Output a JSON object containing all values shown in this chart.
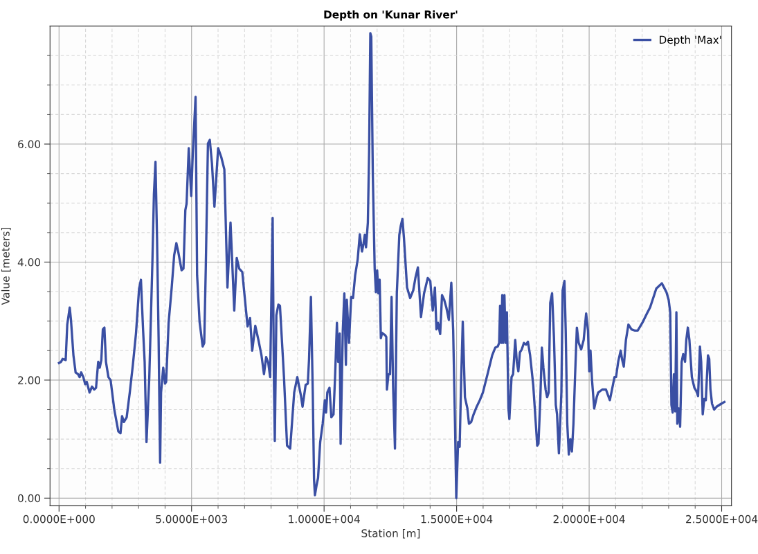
{
  "chart_data": {
    "type": "line",
    "title": "Depth on 'Kunar River'",
    "xlabel": "Station [m]",
    "ylabel": "Value [meters]",
    "xlim": [
      -340,
      25370
    ],
    "ylim": [
      -0.13,
      8.0
    ],
    "xticks": [
      {
        "value": 0,
        "label": "0.0000E+000"
      },
      {
        "value": 1000,
        "label": null
      },
      {
        "value": 2000,
        "label": null
      },
      {
        "value": 3000,
        "label": null
      },
      {
        "value": 4000,
        "label": null
      },
      {
        "value": 5000,
        "label": "5.0000E+003"
      },
      {
        "value": 6000,
        "label": null
      },
      {
        "value": 7000,
        "label": null
      },
      {
        "value": 8000,
        "label": null
      },
      {
        "value": 9000,
        "label": null
      },
      {
        "value": 10000,
        "label": "1.0000E+004"
      },
      {
        "value": 11000,
        "label": null
      },
      {
        "value": 12000,
        "label": null
      },
      {
        "value": 13000,
        "label": null
      },
      {
        "value": 14000,
        "label": null
      },
      {
        "value": 15000,
        "label": "1.5000E+004"
      },
      {
        "value": 16000,
        "label": null
      },
      {
        "value": 17000,
        "label": null
      },
      {
        "value": 18000,
        "label": null
      },
      {
        "value": 19000,
        "label": null
      },
      {
        "value": 20000,
        "label": "2.0000E+004"
      },
      {
        "value": 21000,
        "label": null
      },
      {
        "value": 22000,
        "label": null
      },
      {
        "value": 23000,
        "label": null
      },
      {
        "value": 24000,
        "label": null
      },
      {
        "value": 25000,
        "label": "2.5000E+004"
      }
    ],
    "yticks": [
      {
        "value": 0,
        "label": "0.00"
      },
      {
        "value": 0.5,
        "label": null
      },
      {
        "value": 1,
        "label": null
      },
      {
        "value": 1.5,
        "label": null
      },
      {
        "value": 2,
        "label": "2.00"
      },
      {
        "value": 2.5,
        "label": null
      },
      {
        "value": 3,
        "label": null
      },
      {
        "value": 3.5,
        "label": null
      },
      {
        "value": 4,
        "label": "4.00"
      },
      {
        "value": 4.5,
        "label": null
      },
      {
        "value": 5,
        "label": null
      },
      {
        "value": 5.5,
        "label": null
      },
      {
        "value": 6,
        "label": "6.00"
      },
      {
        "value": 6.5,
        "label": null
      },
      {
        "value": 7,
        "label": null
      },
      {
        "value": 7.5,
        "label": null
      }
    ],
    "grid": true,
    "legend": "top right",
    "marker": "none",
    "line_style": "solid",
    "series": [
      {
        "name": "Depth 'Max'",
        "color": "#3a4fa3",
        "x": [
          0,
          76,
          135,
          251,
          310,
          403,
          450,
          543,
          625,
          719,
          777,
          835,
          917,
          987,
          1046,
          1151,
          1244,
          1326,
          1396,
          1478,
          1536,
          1595,
          1653,
          1711,
          1770,
          1863,
          1945,
          2085,
          2237,
          2319,
          2377,
          2447,
          2552,
          2669,
          2786,
          2903,
          3020,
          3090,
          3172,
          3230,
          3300,
          3405,
          3522,
          3580,
          3639,
          3697,
          3756,
          3779,
          3814,
          3849,
          3931,
          4001,
          4041,
          4134,
          4251,
          4345,
          4426,
          4508,
          4625,
          4695,
          4765,
          4812,
          4894,
          4987,
          5045,
          5151,
          5209,
          5302,
          5419,
          5478,
          5536,
          5618,
          5688,
          5770,
          5863,
          6003,
          6120,
          6237,
          6354,
          6470,
          6611,
          6704,
          6797,
          6914,
          7113,
          7206,
          7288,
          7405,
          7522,
          7638,
          7732,
          7814,
          7895,
          7965,
          8059,
          8106,
          8141,
          8199,
          8276,
          8335,
          8487,
          8603,
          8720,
          8872,
          8989,
          9129,
          9187,
          9304,
          9386,
          9433,
          9503,
          9573,
          9620,
          9655,
          9713,
          9771,
          9853,
          9947,
          10028,
          10075,
          10122,
          10203,
          10274,
          10355,
          10414,
          10484,
          10531,
          10589,
          10624,
          10706,
          10764,
          10823,
          10858,
          10940,
          11022,
          11091,
          11173,
          11266,
          11348,
          11430,
          11488,
          11535,
          11582,
          11652,
          11699,
          11745,
          11780,
          11839,
          11909,
          11955,
          12002,
          12049,
          12096,
          12142,
          12189,
          12306,
          12347,
          12371,
          12429,
          12487,
          12546,
          12604,
          12674,
          12744,
          12838,
          12896,
          12955,
          13013,
          13130,
          13247,
          13363,
          13445,
          13539,
          13655,
          13772,
          13912,
          14006,
          14099,
          14181,
          14239,
          14298,
          14380,
          14450,
          14532,
          14613,
          14707,
          14800,
          14870,
          14940,
          14987,
          15057,
          15115,
          15174,
          15232,
          15314,
          15407,
          15466,
          15548,
          15641,
          15758,
          15875,
          15991,
          16166,
          16342,
          16458,
          16552,
          16605,
          16640,
          16687,
          16722,
          16757,
          16804,
          16850,
          16897,
          16955,
          16990,
          17072,
          17131,
          17212,
          17271,
          17329,
          17388,
          17458,
          17539,
          17621,
          17691,
          17773,
          17890,
          17972,
          18042,
          18088,
          18158,
          18217,
          18275,
          18357,
          18415,
          18474,
          18532,
          18602,
          18672,
          18742,
          18789,
          18859,
          18906,
          18953,
          19000,
          19069,
          19116,
          19175,
          19233,
          19292,
          19350,
          19408,
          19467,
          19537,
          19607,
          19700,
          19794,
          19887,
          19957,
          20004,
          20051,
          20109,
          20191,
          20285,
          20343,
          20495,
          20635,
          20699,
          20781,
          20863,
          20956,
          21015,
          21096,
          21190,
          21248,
          21307,
          21388,
          21482,
          21599,
          21715,
          21832,
          22007,
          22183,
          22299,
          22416,
          22533,
          22650,
          22743,
          22825,
          22918,
          23000,
          23059,
          23105,
          23152,
          23199,
          23246,
          23292,
          23327,
          23385,
          23433,
          23491,
          23549,
          23619,
          23666,
          23724,
          23783,
          23876,
          23970,
          24051,
          24110,
          24180,
          24227,
          24285,
          24344,
          24402,
          24484,
          24531,
          24577,
          24636,
          24718,
          24811,
          24986,
          25103
        ],
        "values": [
          2.29,
          2.31,
          2.36,
          2.34,
          2.94,
          3.23,
          3.02,
          2.42,
          2.13,
          2.1,
          2.05,
          2.13,
          2.05,
          1.93,
          1.97,
          1.79,
          1.89,
          1.84,
          1.87,
          2.31,
          2.21,
          2.34,
          2.86,
          2.89,
          2.31,
          2.05,
          2.0,
          1.5,
          1.13,
          1.1,
          1.39,
          1.29,
          1.37,
          1.79,
          2.26,
          2.79,
          3.55,
          3.7,
          2.84,
          2.31,
          0.95,
          2.05,
          3.99,
          5.15,
          5.7,
          4.41,
          2.73,
          1.84,
          0.6,
          1.79,
          2.21,
          1.94,
          1.97,
          2.97,
          3.57,
          4.12,
          4.32,
          4.15,
          3.86,
          3.89,
          4.88,
          4.99,
          5.93,
          5.12,
          5.83,
          6.8,
          3.78,
          2.99,
          2.57,
          2.63,
          3.89,
          6.01,
          6.07,
          5.67,
          4.94,
          5.93,
          5.78,
          5.57,
          3.57,
          4.67,
          3.18,
          4.07,
          3.89,
          3.83,
          2.91,
          3.05,
          2.5,
          2.92,
          2.68,
          2.42,
          2.1,
          2.39,
          2.29,
          2.05,
          4.75,
          2.05,
          0.97,
          3.1,
          3.28,
          3.26,
          2.05,
          0.89,
          0.84,
          1.79,
          2.05,
          1.73,
          1.55,
          1.92,
          1.94,
          2.36,
          3.41,
          1.79,
          0.32,
          0.05,
          0.21,
          0.34,
          0.95,
          1.26,
          1.66,
          1.45,
          1.79,
          1.87,
          1.37,
          1.42,
          2.05,
          2.97,
          2.31,
          2.79,
          0.92,
          2.84,
          3.47,
          2.26,
          3.36,
          2.63,
          3.41,
          3.39,
          3.78,
          4.04,
          4.47,
          4.18,
          4.31,
          4.46,
          4.25,
          4.67,
          5.88,
          7.88,
          7.82,
          5.46,
          3.89,
          3.49,
          3.86,
          3.47,
          3.7,
          2.71,
          2.8,
          2.76,
          2.73,
          1.84,
          2.1,
          2.1,
          3.41,
          1.89,
          0.84,
          3.47,
          4.46,
          4.62,
          4.73,
          4.41,
          3.57,
          3.39,
          3.52,
          3.73,
          3.91,
          3.07,
          3.47,
          3.73,
          3.68,
          3.18,
          3.57,
          2.86,
          2.97,
          2.78,
          3.44,
          3.36,
          3.23,
          3.02,
          3.65,
          2.84,
          1.26,
          0.0,
          0.95,
          0.87,
          2.05,
          2.99,
          1.71,
          1.52,
          1.26,
          1.29,
          1.42,
          1.55,
          1.66,
          1.79,
          2.1,
          2.42,
          2.55,
          2.57,
          2.63,
          3.26,
          2.63,
          3.44,
          2.63,
          3.44,
          2.63,
          3.15,
          1.52,
          1.34,
          2.05,
          2.1,
          2.68,
          2.31,
          2.15,
          2.47,
          2.52,
          2.63,
          2.6,
          2.65,
          2.42,
          1.92,
          1.37,
          0.89,
          0.92,
          1.68,
          2.55,
          2.21,
          1.84,
          1.71,
          1.79,
          3.31,
          3.47,
          2.73,
          1.58,
          1.42,
          0.76,
          1.26,
          1.79,
          3.52,
          3.68,
          2.84,
          1.26,
          0.74,
          1.0,
          0.79,
          1.26,
          2.05,
          2.89,
          2.63,
          2.52,
          2.68,
          3.13,
          2.84,
          2.15,
          2.5,
          2.0,
          1.52,
          1.71,
          1.79,
          1.84,
          1.84,
          1.76,
          1.66,
          1.84,
          2.05,
          2.05,
          2.31,
          2.5,
          2.34,
          2.23,
          2.68,
          2.94,
          2.86,
          2.84,
          2.84,
          2.97,
          3.13,
          3.23,
          3.39,
          3.55,
          3.6,
          3.64,
          3.57,
          3.49,
          3.36,
          3.15,
          1.58,
          1.45,
          2.1,
          1.47,
          3.15,
          1.26,
          1.52,
          1.21,
          2.31,
          2.44,
          2.31,
          2.68,
          2.89,
          2.68,
          2.05,
          1.87,
          1.81,
          1.73,
          2.57,
          2.31,
          1.42,
          1.68,
          1.66,
          2.42,
          2.36,
          1.84,
          1.6,
          1.5,
          1.55,
          1.6,
          1.63
        ]
      }
    ]
  }
}
